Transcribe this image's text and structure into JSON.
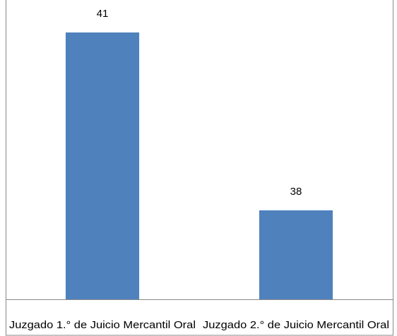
{
  "chart_data": {
    "type": "bar",
    "categories": [
      "Juzgado 1.° de Juicio Mercantil Oral",
      "Juzgado 2.° de Juicio Mercantil Oral"
    ],
    "values": [
      41,
      38
    ],
    "color": "#4f81bd",
    "ylim": [
      36.5,
      41.5
    ],
    "data_labels": true
  }
}
